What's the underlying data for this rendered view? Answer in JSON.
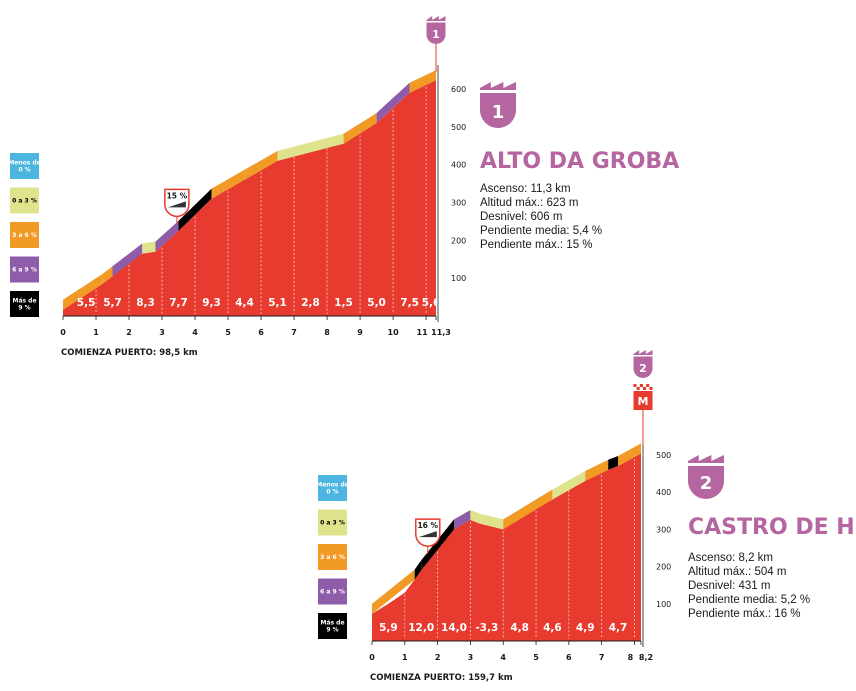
{
  "colors": {
    "profile": "#e63b2e",
    "lt0": "#4cb6e0",
    "g0_3": "#dfe38c",
    "g3_6": "#f29a26",
    "g6_9": "#8e5ca8",
    "gt9": "#000000",
    "accent": "#b5659f"
  },
  "legend": [
    {
      "label": "Menos de 0 %",
      "lines": [
        "Menos de",
        "0 %"
      ],
      "color": "#4cb6e0",
      "text_color": "#ffffff"
    },
    {
      "label": "0 a 3 %",
      "lines": [
        "0 a 3 %"
      ],
      "color": "#dfe38c",
      "text_color": "#000000"
    },
    {
      "label": "3 a 6 %",
      "lines": [
        "3 a 6 %"
      ],
      "color": "#f29a26",
      "text_color": "#ffffff"
    },
    {
      "label": "6 a 9 %",
      "lines": [
        "6 a 9 %"
      ],
      "color": "#8e5ca8",
      "text_color": "#ffffff"
    },
    {
      "label": "Más de 9 %",
      "lines": [
        "Más de",
        "9 %"
      ],
      "color": "#000000",
      "text_color": "#ffffff"
    }
  ],
  "chart_data": [
    {
      "type": "area",
      "badge_number": "1",
      "title": "ALTO DA GROBA",
      "stats": [
        "Ascenso: 11,3 km",
        "Altitud máx.: 623 m",
        "Desnivel: 606 m",
        "Pendiente media: 5,4 %",
        "Pendiente máx.: 15 %"
      ],
      "start_label": "COMIENZA PUERTO: 98,5 km",
      "x_ticks": [
        "0",
        "1",
        "2",
        "3",
        "4",
        "5",
        "6",
        "7",
        "8",
        "9",
        "10",
        "11",
        "11,3"
      ],
      "y_ticks": [
        "100",
        "200",
        "300",
        "400",
        "500",
        "600"
      ],
      "xlim": [
        0,
        11.3
      ],
      "ylim": [
        0,
        650
      ],
      "profile": [
        [
          0,
          17
        ],
        [
          0.5,
          45
        ],
        [
          1.2,
          85
        ],
        [
          1.5,
          105
        ],
        [
          2,
          140
        ],
        [
          2.4,
          165
        ],
        [
          2.8,
          170
        ],
        [
          3.5,
          225
        ],
        [
          4.5,
          310
        ],
        [
          5,
          335
        ],
        [
          5.5,
          360
        ],
        [
          6.5,
          410
        ],
        [
          7.5,
          440
        ],
        [
          8.5,
          455
        ],
        [
          9.5,
          510
        ],
        [
          10.5,
          590
        ],
        [
          11.3,
          623
        ]
      ],
      "slope_segments": [
        {
          "from": 0,
          "to": 0.5,
          "grade": "3-6"
        },
        {
          "from": 0.5,
          "to": 1.2,
          "grade": "3-6"
        },
        {
          "from": 1.2,
          "to": 1.5,
          "grade": "3-6"
        },
        {
          "from": 1.5,
          "to": 2.4,
          "grade": "6-9"
        },
        {
          "from": 2.4,
          "to": 2.8,
          "grade": "0-3"
        },
        {
          "from": 2.8,
          "to": 3.5,
          "grade": "6-9"
        },
        {
          "from": 3.5,
          "to": 4.5,
          "grade": ">9"
        },
        {
          "from": 4.5,
          "to": 5.5,
          "grade": "3-6"
        },
        {
          "from": 5.5,
          "to": 6.5,
          "grade": "3-6"
        },
        {
          "from": 6.5,
          "to": 8.5,
          "grade": "0-3"
        },
        {
          "from": 8.5,
          "to": 9.5,
          "grade": "3-6"
        },
        {
          "from": 9.5,
          "to": 10.5,
          "grade": "6-9"
        },
        {
          "from": 10.5,
          "to": 11.3,
          "grade": "3-6"
        }
      ],
      "gradients": [
        {
          "km": 0.7,
          "label": "5,5"
        },
        {
          "km": 1.5,
          "label": "5,7"
        },
        {
          "km": 2.5,
          "label": "8,3"
        },
        {
          "km": 3.5,
          "label": "7,7"
        },
        {
          "km": 4.5,
          "label": "9,3"
        },
        {
          "km": 5.5,
          "label": "4,4"
        },
        {
          "km": 6.5,
          "label": "5,1"
        },
        {
          "km": 7.5,
          "label": "2,8"
        },
        {
          "km": 8.5,
          "label": "1,5"
        },
        {
          "km": 9.5,
          "label": "5,0"
        },
        {
          "km": 10.5,
          "label": "7,5"
        },
        {
          "km": 11.15,
          "label": "5,6"
        }
      ],
      "max_marker": {
        "km": 3.45,
        "label": "15 %"
      },
      "finish_marker": "1"
    },
    {
      "type": "area",
      "badge_number": "2",
      "title": "CASTRO DE HERVILLE",
      "stats": [
        "Ascenso: 8,2 km",
        "Altitud máx.: 504 m",
        "Desnivel: 431 m",
        "Pendiente media: 5,2 %",
        "Pendiente máx.: 16 %"
      ],
      "start_label": "COMIENZA PUERTO: 159,7 km",
      "x_ticks": [
        "0",
        "1",
        "2",
        "3",
        "4",
        "5",
        "6",
        "7",
        "8",
        "8,2"
      ],
      "y_ticks": [
        "100",
        "200",
        "300",
        "400",
        "500"
      ],
      "xlim": [
        0,
        8.2
      ],
      "ylim": [
        0,
        540
      ],
      "profile": [
        [
          0,
          73
        ],
        [
          0.5,
          100
        ],
        [
          1,
          130
        ],
        [
          1.3,
          165
        ],
        [
          1.5,
          190
        ],
        [
          2.5,
          300
        ],
        [
          3,
          325
        ],
        [
          3.3,
          315
        ],
        [
          4,
          300
        ],
        [
          4.5,
          330
        ],
        [
          5,
          355
        ],
        [
          5.5,
          380
        ],
        [
          6,
          410
        ],
        [
          6.5,
          430
        ],
        [
          7.2,
          460
        ],
        [
          7.5,
          470
        ],
        [
          8.2,
          504
        ]
      ],
      "slope_segments": [
        {
          "from": 0,
          "to": 1.3,
          "grade": "3-6"
        },
        {
          "from": 1.3,
          "to": 1.5,
          "grade": ">9"
        },
        {
          "from": 1.5,
          "to": 2.5,
          "grade": ">9"
        },
        {
          "from": 2.5,
          "to": 3,
          "grade": "6-9"
        },
        {
          "from": 3,
          "to": 3.3,
          "grade": "0-3"
        },
        {
          "from": 3.3,
          "to": 4,
          "grade": "0-3"
        },
        {
          "from": 4,
          "to": 5.5,
          "grade": "3-6"
        },
        {
          "from": 5.5,
          "to": 6.5,
          "grade": "0-3"
        },
        {
          "from": 6.5,
          "to": 7.2,
          "grade": "3-6"
        },
        {
          "from": 7.2,
          "to": 7.5,
          "grade": ">9"
        },
        {
          "from": 7.5,
          "to": 8.2,
          "grade": "3-6"
        }
      ],
      "gradients": [
        {
          "km": 0.5,
          "label": "5,9"
        },
        {
          "km": 1.5,
          "label": "12,0"
        },
        {
          "km": 2.5,
          "label": "14,0"
        },
        {
          "km": 3.5,
          "label": "-3,3"
        },
        {
          "km": 4.5,
          "label": "4,8"
        },
        {
          "km": 5.5,
          "label": "4,6"
        },
        {
          "km": 6.5,
          "label": "4,9"
        },
        {
          "km": 7.5,
          "label": "4,7"
        }
      ],
      "max_marker": {
        "km": 1.7,
        "label": "16 %"
      },
      "finish_marker": "2",
      "finish_meta": "M"
    }
  ]
}
